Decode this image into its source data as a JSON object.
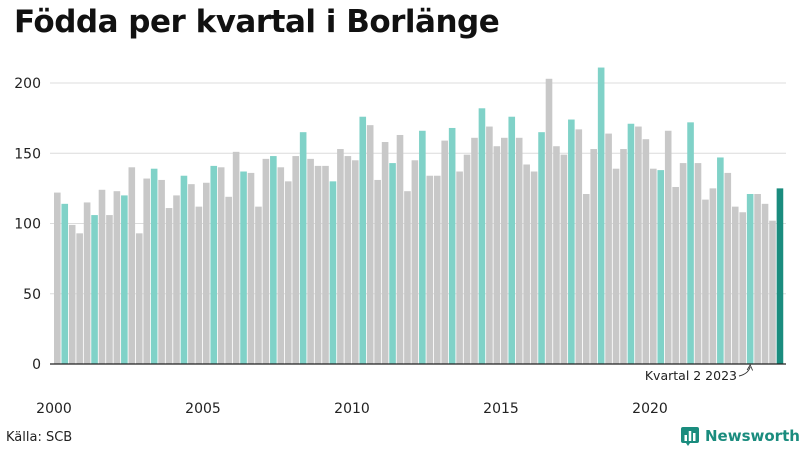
{
  "chart_data": {
    "type": "bar",
    "title": "Födda per kvartal i Borlänge",
    "xlabel": "",
    "ylabel": "",
    "ylim": [
      0,
      215
    ],
    "yticks": [
      0,
      50,
      100,
      150,
      200
    ],
    "x_tick_labels": [
      "2000",
      "2005",
      "2010",
      "2015",
      "2020"
    ],
    "grid": true,
    "colors": {
      "default": "#c8c8c8",
      "same_quarter": "#80d2c8",
      "latest": "#1a8c7e"
    },
    "highlight_quarter": 2,
    "annotation": "Kvartal 2 2023",
    "series": [
      {
        "year": 2000,
        "values": [
          122,
          114,
          99,
          93
        ]
      },
      {
        "year": 2001,
        "values": [
          115,
          106,
          124,
          106
        ]
      },
      {
        "year": 2002,
        "values": [
          123,
          120,
          140,
          93
        ]
      },
      {
        "year": 2003,
        "values": [
          132,
          139,
          131,
          111
        ]
      },
      {
        "year": 2004,
        "values": [
          120,
          134,
          128,
          112
        ]
      },
      {
        "year": 2005,
        "values": [
          129,
          141,
          140,
          119
        ]
      },
      {
        "year": 2006,
        "values": [
          151,
          137,
          136,
          112
        ]
      },
      {
        "year": 2007,
        "values": [
          146,
          148,
          140,
          130
        ]
      },
      {
        "year": 2008,
        "values": [
          148,
          165,
          146,
          141
        ]
      },
      {
        "year": 2009,
        "values": [
          141,
          130,
          153,
          148
        ]
      },
      {
        "year": 2010,
        "values": [
          145,
          176,
          170,
          131
        ]
      },
      {
        "year": 2011,
        "values": [
          158,
          143,
          163,
          123
        ]
      },
      {
        "year": 2012,
        "values": [
          145,
          166,
          134,
          134
        ]
      },
      {
        "year": 2013,
        "values": [
          159,
          168,
          137,
          149
        ]
      },
      {
        "year": 2014,
        "values": [
          161,
          182,
          169,
          155
        ]
      },
      {
        "year": 2015,
        "values": [
          161,
          176,
          161,
          142
        ]
      },
      {
        "year": 2016,
        "values": [
          137,
          165,
          203,
          155
        ]
      },
      {
        "year": 2017,
        "values": [
          149,
          174,
          167,
          121
        ]
      },
      {
        "year": 2018,
        "values": [
          153,
          211,
          164,
          139
        ]
      },
      {
        "year": 2019,
        "values": [
          153,
          171,
          169,
          160
        ]
      },
      {
        "year": 2020,
        "values": [
          139,
          138,
          166,
          126
        ]
      },
      {
        "year": 2021,
        "values": [
          143,
          172,
          143,
          117
        ]
      },
      {
        "year": 2022,
        "values": [
          125,
          147,
          136,
          112
        ]
      },
      {
        "year": 2023,
        "values": [
          108,
          121,
          121,
          114
        ]
      },
      {
        "year": 2024,
        "values": [
          102,
          125
        ]
      }
    ]
  },
  "footer": {
    "source": "Källa: SCB",
    "brand": "Newsworthy",
    "logo_icon": "bar-chart-logo-icon"
  }
}
